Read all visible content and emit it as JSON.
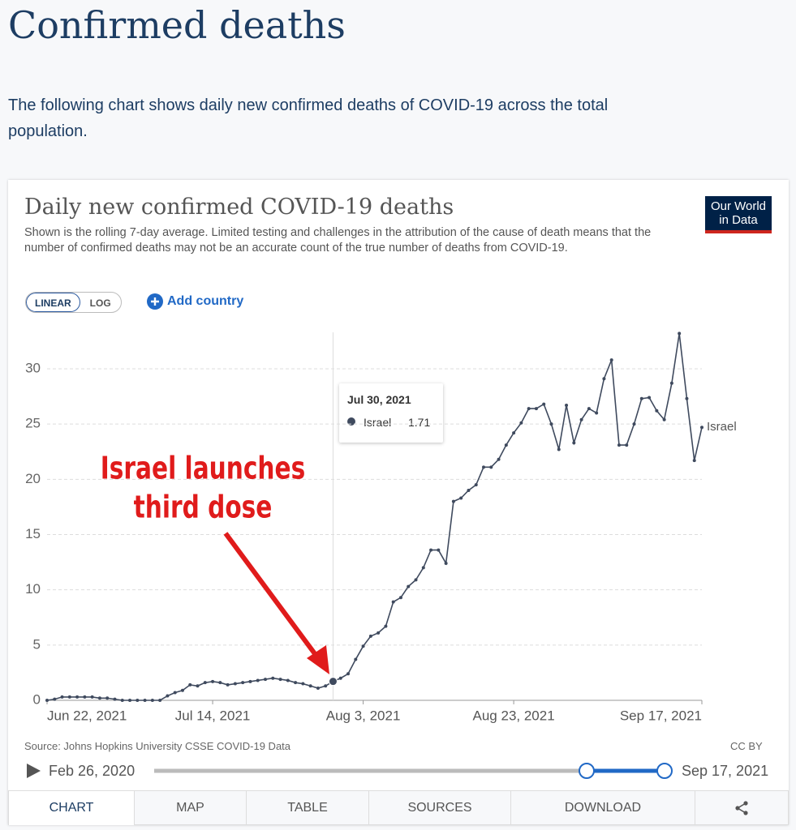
{
  "page": {
    "heading": "Confirmed deaths",
    "intro": "The following chart shows daily new confirmed deaths of COVID-19 across the total population."
  },
  "controls": {
    "linear": "LINEAR",
    "log": "LOG",
    "add_country": "Add country"
  },
  "logo": [
    "Our World",
    "in Data"
  ],
  "footer": {
    "source": "Source: Johns Hopkins University CSSE COVID-19 Data",
    "license": "CC BY"
  },
  "timeline": {
    "start": "Feb 26, 2020",
    "end": "Sep 17, 2021"
  },
  "tabs": [
    "CHART",
    "MAP",
    "TABLE",
    "SOURCES",
    "DOWNLOAD"
  ],
  "chart_data": {
    "type": "line",
    "title": "Daily new confirmed COVID-19 deaths",
    "subtitle": "Shown is the rolling 7-day average. Limited testing and challenges in the attribution of the cause of death means that the number of confirmed deaths may not be an accurate count of the true number of deaths from COVID-19.",
    "x": [
      "2021-06-22",
      "2021-06-23",
      "2021-06-24",
      "2021-06-25",
      "2021-06-26",
      "2021-06-27",
      "2021-06-28",
      "2021-06-29",
      "2021-06-30",
      "2021-07-01",
      "2021-07-02",
      "2021-07-03",
      "2021-07-04",
      "2021-07-05",
      "2021-07-06",
      "2021-07-07",
      "2021-07-08",
      "2021-07-09",
      "2021-07-10",
      "2021-07-11",
      "2021-07-12",
      "2021-07-13",
      "2021-07-14",
      "2021-07-15",
      "2021-07-16",
      "2021-07-17",
      "2021-07-18",
      "2021-07-19",
      "2021-07-20",
      "2021-07-21",
      "2021-07-22",
      "2021-07-23",
      "2021-07-24",
      "2021-07-25",
      "2021-07-26",
      "2021-07-27",
      "2021-07-28",
      "2021-07-29",
      "2021-07-30",
      "2021-07-31",
      "2021-08-01",
      "2021-08-02",
      "2021-08-03",
      "2021-08-04",
      "2021-08-05",
      "2021-08-06",
      "2021-08-07",
      "2021-08-08",
      "2021-08-09",
      "2021-08-10",
      "2021-08-11",
      "2021-08-12",
      "2021-08-13",
      "2021-08-14",
      "2021-08-15",
      "2021-08-16",
      "2021-08-17",
      "2021-08-18",
      "2021-08-19",
      "2021-08-20",
      "2021-08-21",
      "2021-08-22",
      "2021-08-23",
      "2021-08-24",
      "2021-08-25",
      "2021-08-26",
      "2021-08-27",
      "2021-08-28",
      "2021-08-29",
      "2021-08-30",
      "2021-08-31",
      "2021-09-01",
      "2021-09-02",
      "2021-09-03",
      "2021-09-04",
      "2021-09-05",
      "2021-09-06",
      "2021-09-07",
      "2021-09-08",
      "2021-09-09",
      "2021-09-10",
      "2021-09-11",
      "2021-09-12",
      "2021-09-13",
      "2021-09-14",
      "2021-09-15",
      "2021-09-16",
      "2021-09-17"
    ],
    "series": [
      {
        "name": "Israel",
        "color": "#3f4a5e",
        "values": [
          0,
          0.1,
          0.3,
          0.3,
          0.3,
          0.3,
          0.3,
          0.2,
          0.2,
          0.1,
          0,
          0,
          0,
          0,
          0,
          0,
          0.4,
          0.7,
          0.9,
          1.4,
          1.3,
          1.6,
          1.7,
          1.6,
          1.4,
          1.5,
          1.6,
          1.7,
          1.8,
          1.9,
          2.0,
          1.9,
          1.8,
          1.6,
          1.5,
          1.3,
          1.1,
          1.3,
          1.71,
          2.0,
          2.4,
          3.7,
          4.9,
          5.8,
          6.1,
          6.7,
          8.9,
          9.3,
          10.3,
          10.9,
          12.0,
          13.6,
          13.6,
          12.4,
          18.0,
          18.3,
          19.0,
          19.5,
          21.1,
          21.1,
          21.8,
          23.1,
          24.2,
          25.1,
          26.4,
          26.4,
          26.8,
          25.0,
          22.7,
          26.7,
          23.3,
          25.4,
          26.4,
          26.0,
          29.1,
          30.8,
          23.1,
          23.1,
          25.0,
          27.3,
          27.4,
          26.2,
          25.4,
          28.7,
          33.2,
          27.3,
          21.7,
          24.7
        ]
      }
    ],
    "xlim": [
      "2021-06-22",
      "2021-09-17"
    ],
    "xticks": [
      {
        "value": "2021-06-22",
        "label": "Jun 22, 2021"
      },
      {
        "value": "2021-07-14",
        "label": "Jul 14, 2021"
      },
      {
        "value": "2021-08-03",
        "label": "Aug 3, 2021"
      },
      {
        "value": "2021-08-23",
        "label": "Aug 23, 2021"
      },
      {
        "value": "2021-09-17",
        "label": "Sep 17, 2021"
      }
    ],
    "ylim": [
      0,
      33.3
    ],
    "yticks": [
      0,
      5,
      10,
      15,
      20,
      25,
      30
    ],
    "grid": true,
    "tooltip": {
      "title": "Jul 30, 2021",
      "series": "Israel",
      "value": 1.71
    },
    "annotation": [
      "Israel launches",
      "third dose"
    ]
  }
}
